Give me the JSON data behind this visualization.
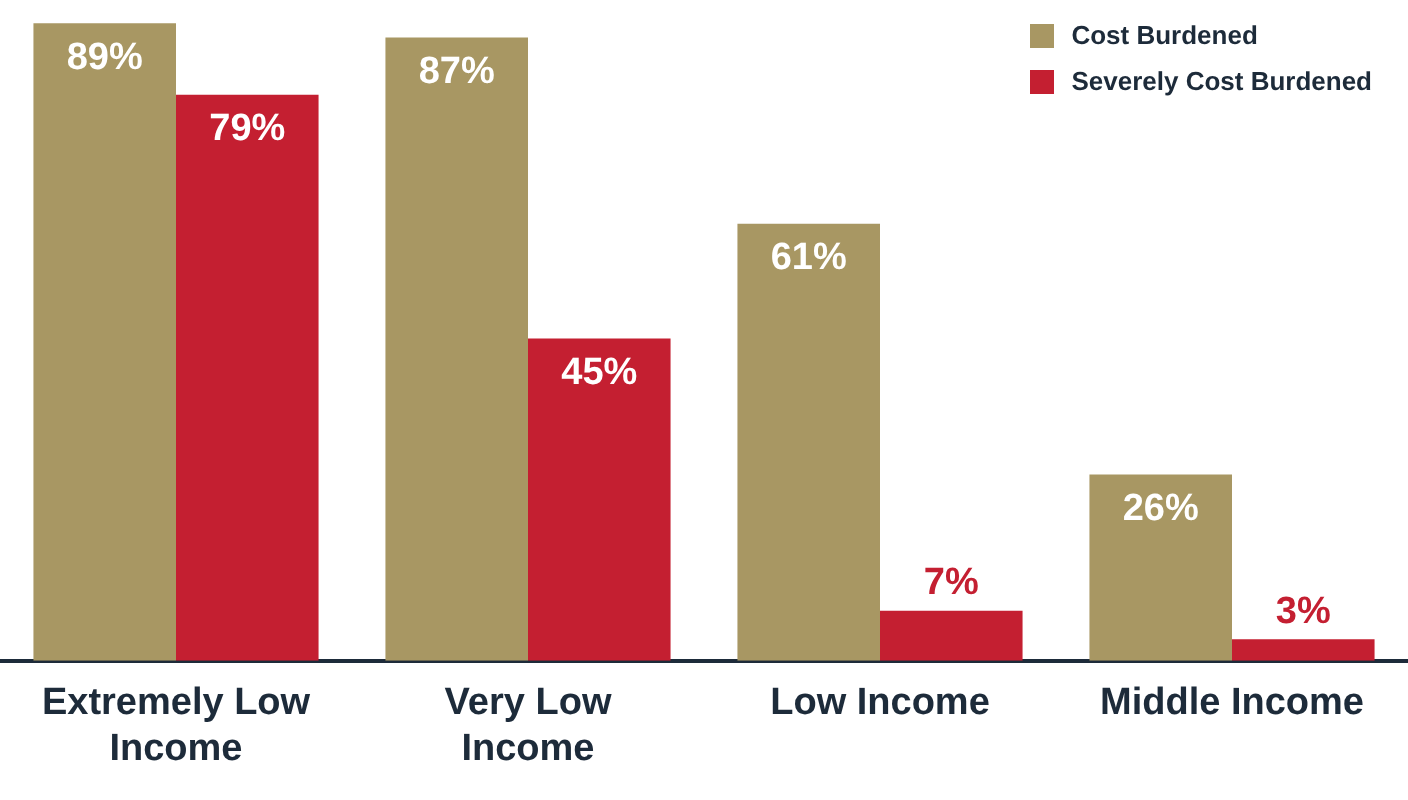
{
  "chart_data": {
    "type": "bar",
    "categories": [
      "Extremely Low Income",
      "Very Low Income",
      "Low Income",
      "Middle Income"
    ],
    "series": [
      {
        "name": "Cost Burdened",
        "color": "#a89763",
        "values": [
          89,
          87,
          61,
          26
        ],
        "value_labels": [
          "89%",
          "87%",
          "61%",
          "26%"
        ]
      },
      {
        "name": "Severely Cost Burdened",
        "color": "#c41f31",
        "values": [
          79,
          45,
          7,
          3
        ],
        "value_labels": [
          "79%",
          "45%",
          "7%",
          "3%"
        ]
      }
    ],
    "legend": "top right",
    "grid": false,
    "tick_labels": "x"
  }
}
